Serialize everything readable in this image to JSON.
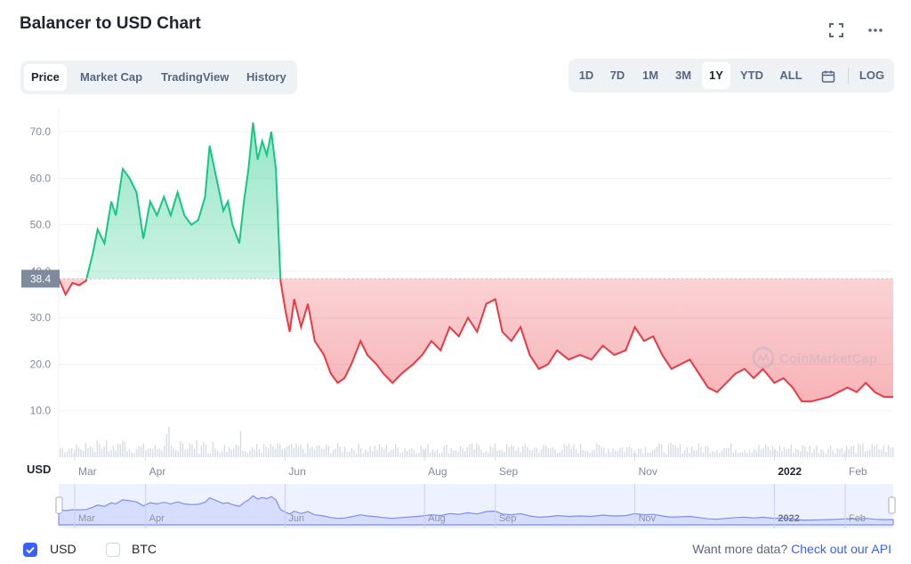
{
  "title": "Balancer to USD Chart",
  "tabs": [
    "Price",
    "Market Cap",
    "TradingView",
    "History"
  ],
  "active_tab": "Price",
  "ranges": [
    "1D",
    "7D",
    "1M",
    "3M",
    "1Y",
    "YTD",
    "ALL"
  ],
  "active_range": "1Y",
  "log_label": "LOG",
  "watermark": "CoinMarketCap",
  "currency_label": "USD",
  "footer": {
    "usd_label": "USD",
    "btc_label": "BTC",
    "more_text": "Want more data?",
    "api_link": "Check out our API"
  },
  "colors": {
    "up": "#16c784",
    "down": "#ea3943",
    "accent": "#3861fb"
  },
  "chart_data": {
    "type": "area",
    "title": "",
    "xlabel": "",
    "ylabel": "",
    "ylim": [
      0,
      75
    ],
    "yticks": [
      10.0,
      20.0,
      30.0,
      40.0,
      50.0,
      60.0,
      70.0
    ],
    "ytick_labels": [
      "10.0",
      "20.0",
      "30.0",
      "40.0",
      "50.0",
      "60.0",
      "70.0"
    ],
    "baseline": 38.4,
    "baseline_label": "38.4",
    "xlim": [
      "2021-02-22",
      "2022-02-22"
    ],
    "x_ticks": [
      {
        "date": "2021-03-01",
        "label": "Mar"
      },
      {
        "date": "2021-04-01",
        "label": "Apr"
      },
      {
        "date": "2021-06-01",
        "label": "Jun"
      },
      {
        "date": "2021-08-01",
        "label": "Aug"
      },
      {
        "date": "2021-09-01",
        "label": "Sep"
      },
      {
        "date": "2021-11-01",
        "label": "Nov"
      },
      {
        "date": "2022-01-01",
        "label": "2022"
      },
      {
        "date": "2022-02-01",
        "label": "Feb"
      }
    ],
    "series": [
      {
        "values": [
          [
            "2021-02-22",
            38.4
          ],
          [
            "2021-02-25",
            35
          ],
          [
            "2021-02-28",
            37.5
          ],
          [
            "2021-03-03",
            37
          ],
          [
            "2021-03-06",
            38
          ],
          [
            "2021-03-09",
            44
          ],
          [
            "2021-03-11",
            49
          ],
          [
            "2021-03-14",
            46
          ],
          [
            "2021-03-17",
            55
          ],
          [
            "2021-03-19",
            52
          ],
          [
            "2021-03-22",
            62
          ],
          [
            "2021-03-25",
            60
          ],
          [
            "2021-03-28",
            57
          ],
          [
            "2021-03-31",
            47
          ],
          [
            "2021-04-03",
            55
          ],
          [
            "2021-04-06",
            52
          ],
          [
            "2021-04-09",
            56
          ],
          [
            "2021-04-12",
            52
          ],
          [
            "2021-04-15",
            57
          ],
          [
            "2021-04-18",
            52
          ],
          [
            "2021-04-21",
            50
          ],
          [
            "2021-04-24",
            51
          ],
          [
            "2021-04-27",
            56
          ],
          [
            "2021-04-29",
            67
          ],
          [
            "2021-05-02",
            60
          ],
          [
            "2021-05-05",
            53
          ],
          [
            "2021-05-07",
            55
          ],
          [
            "2021-05-09",
            50
          ],
          [
            "2021-05-12",
            46
          ],
          [
            "2021-05-14",
            55
          ],
          [
            "2021-05-16",
            62
          ],
          [
            "2021-05-18",
            72
          ],
          [
            "2021-05-20",
            64
          ],
          [
            "2021-05-22",
            68
          ],
          [
            "2021-05-24",
            65
          ],
          [
            "2021-05-26",
            70
          ],
          [
            "2021-05-28",
            62
          ],
          [
            "2021-05-29",
            50
          ],
          [
            "2021-05-30",
            38
          ],
          [
            "2021-06-01",
            32
          ],
          [
            "2021-06-03",
            27
          ],
          [
            "2021-06-05",
            34
          ],
          [
            "2021-06-08",
            28
          ],
          [
            "2021-06-11",
            33
          ],
          [
            "2021-06-14",
            25
          ],
          [
            "2021-06-18",
            22
          ],
          [
            "2021-06-21",
            18
          ],
          [
            "2021-06-24",
            16
          ],
          [
            "2021-06-27",
            17
          ],
          [
            "2021-06-30",
            20
          ],
          [
            "2021-07-04",
            25
          ],
          [
            "2021-07-07",
            22
          ],
          [
            "2021-07-11",
            20
          ],
          [
            "2021-07-14",
            18
          ],
          [
            "2021-07-18",
            16
          ],
          [
            "2021-07-22",
            18
          ],
          [
            "2021-07-27",
            20
          ],
          [
            "2021-07-31",
            22
          ],
          [
            "2021-08-04",
            25
          ],
          [
            "2021-08-08",
            23
          ],
          [
            "2021-08-12",
            28
          ],
          [
            "2021-08-16",
            26
          ],
          [
            "2021-08-20",
            30
          ],
          [
            "2021-08-24",
            27
          ],
          [
            "2021-08-28",
            33
          ],
          [
            "2021-09-01",
            34
          ],
          [
            "2021-09-04",
            27
          ],
          [
            "2021-09-08",
            25
          ],
          [
            "2021-09-12",
            28
          ],
          [
            "2021-09-16",
            22
          ],
          [
            "2021-09-20",
            19
          ],
          [
            "2021-09-24",
            20
          ],
          [
            "2021-09-28",
            23
          ],
          [
            "2021-10-03",
            21
          ],
          [
            "2021-10-08",
            22
          ],
          [
            "2021-10-13",
            21
          ],
          [
            "2021-10-18",
            24
          ],
          [
            "2021-10-23",
            22
          ],
          [
            "2021-10-28",
            23
          ],
          [
            "2021-11-01",
            28
          ],
          [
            "2021-11-05",
            25
          ],
          [
            "2021-11-09",
            26
          ],
          [
            "2021-11-13",
            22
          ],
          [
            "2021-11-17",
            19
          ],
          [
            "2021-11-21",
            20
          ],
          [
            "2021-11-25",
            21
          ],
          [
            "2021-11-29",
            18
          ],
          [
            "2021-12-03",
            15
          ],
          [
            "2021-12-07",
            14
          ],
          [
            "2021-12-11",
            16
          ],
          [
            "2021-12-15",
            18
          ],
          [
            "2021-12-19",
            19
          ],
          [
            "2021-12-23",
            17
          ],
          [
            "2021-12-27",
            19
          ],
          [
            "2022-01-01",
            16
          ],
          [
            "2022-01-05",
            17
          ],
          [
            "2022-01-09",
            15
          ],
          [
            "2022-01-13",
            12
          ],
          [
            "2022-01-17",
            12
          ],
          [
            "2022-01-21",
            12.5
          ],
          [
            "2022-01-25",
            13
          ],
          [
            "2022-01-29",
            14
          ],
          [
            "2022-02-02",
            15
          ],
          [
            "2022-02-06",
            14
          ],
          [
            "2022-02-10",
            16
          ],
          [
            "2022-02-14",
            14
          ],
          [
            "2022-02-18",
            13
          ],
          [
            "2022-02-22",
            13
          ]
        ]
      }
    ]
  }
}
